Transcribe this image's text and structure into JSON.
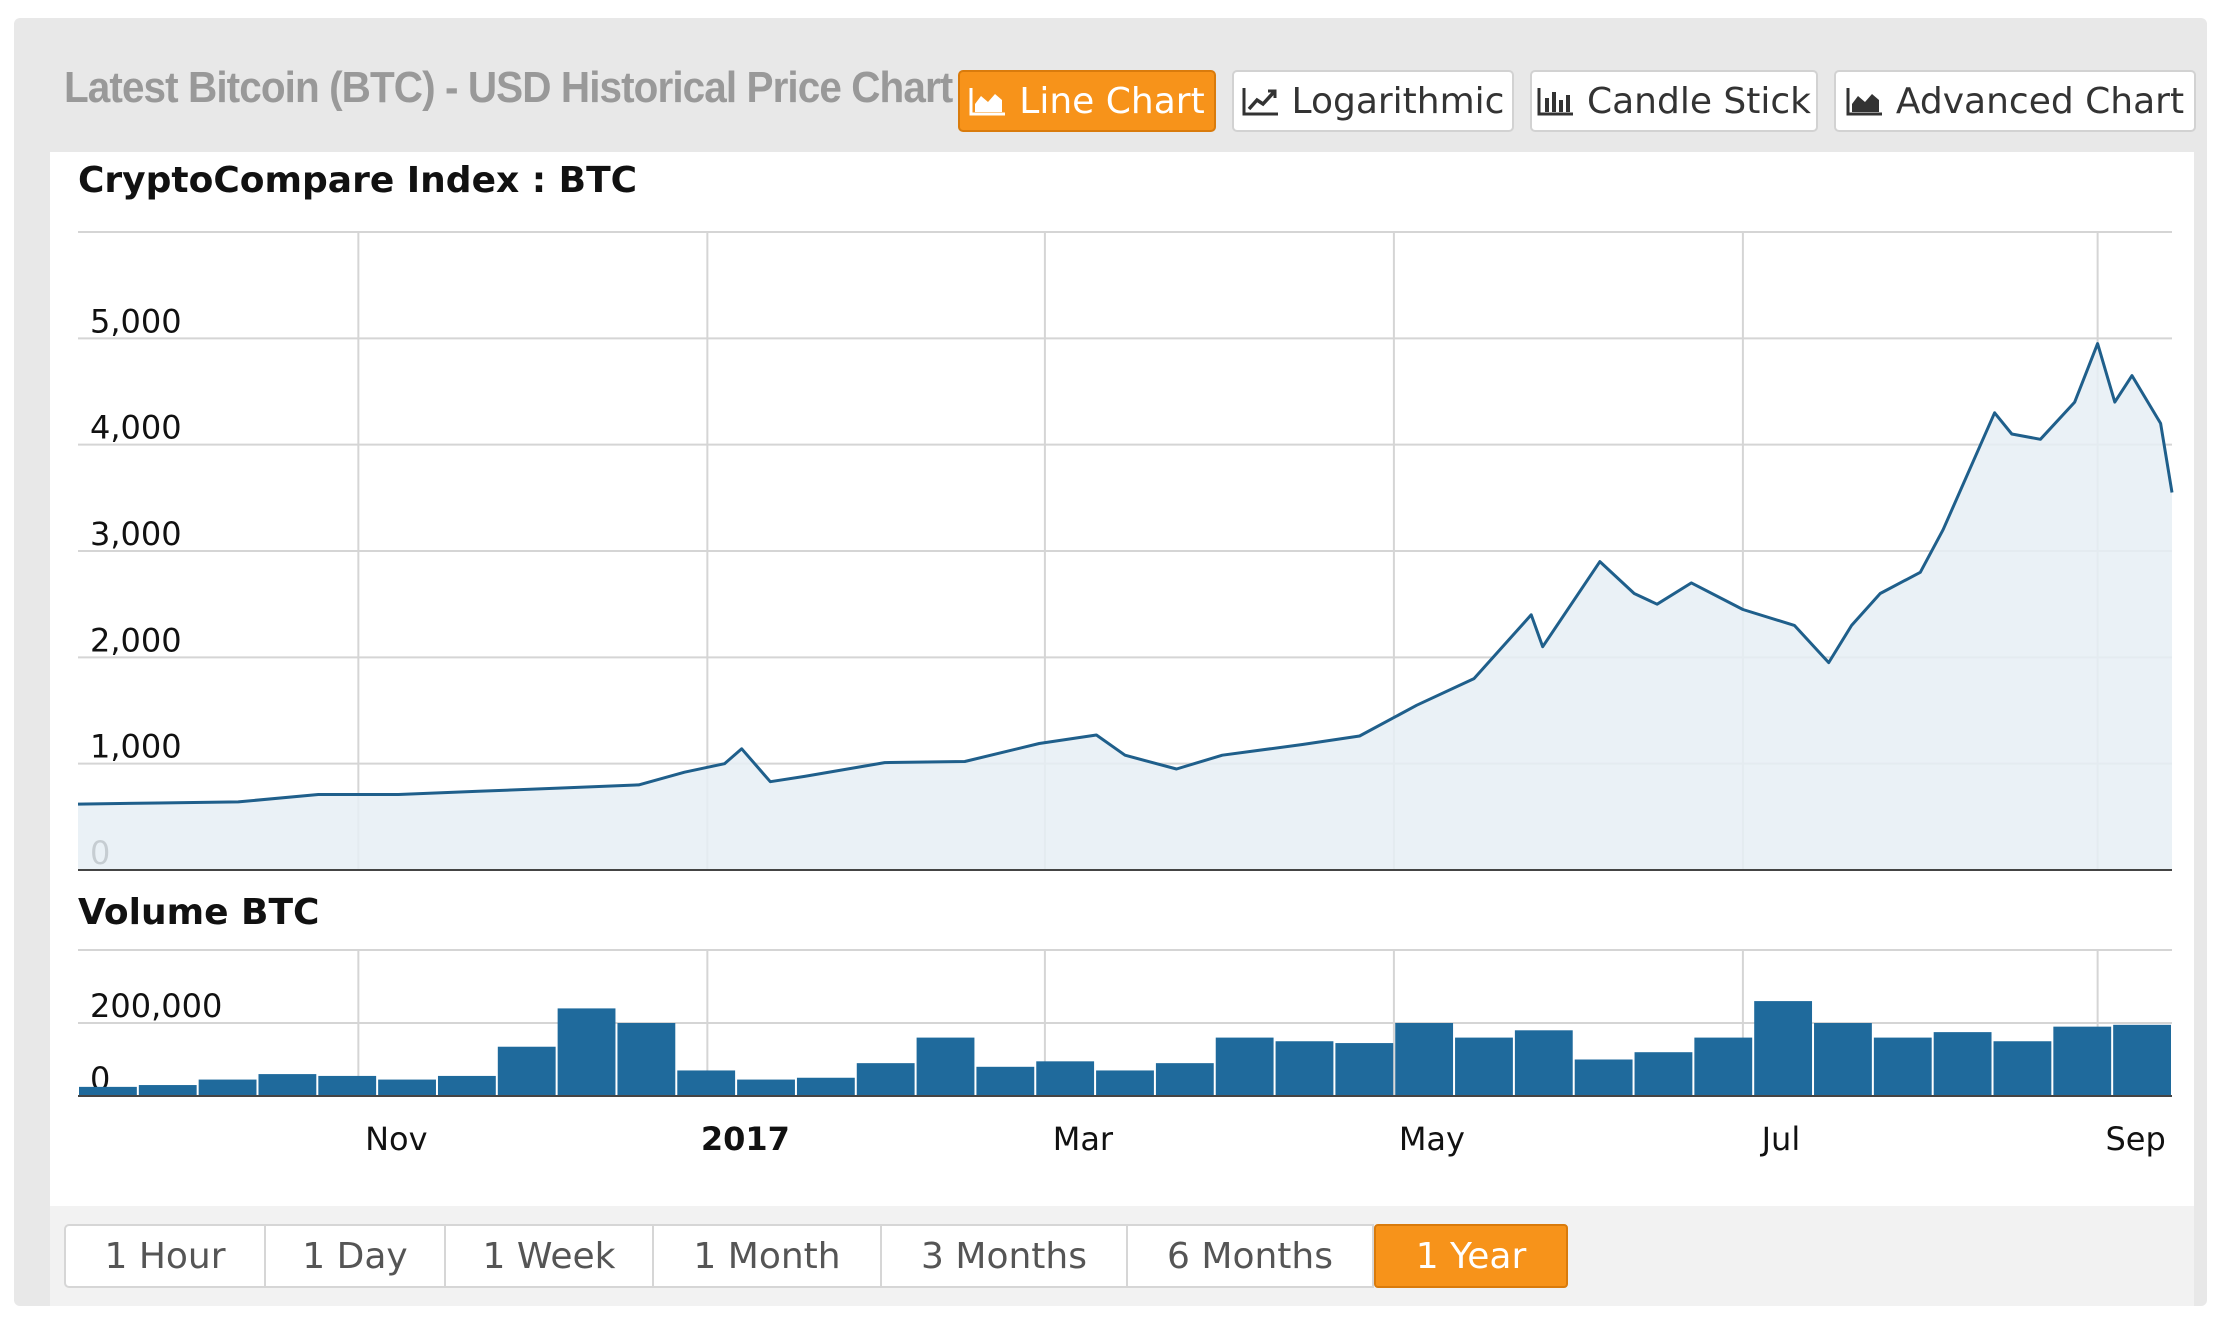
{
  "header": {
    "title": "Latest Bitcoin (BTC) - USD Historical Price Chart"
  },
  "chart_types": [
    {
      "label": "Line Chart",
      "icon": "area-chart-icon",
      "active": true
    },
    {
      "label": "Logarithmic",
      "icon": "line-chart-icon",
      "active": false
    },
    {
      "label": "Candle Stick",
      "icon": "bar-chart-icon",
      "active": false
    },
    {
      "label": "Advanced Chart",
      "icon": "area-chart-icon",
      "active": false
    }
  ],
  "ranges": [
    {
      "label": "1 Hour",
      "active": false
    },
    {
      "label": "1 Day",
      "active": false
    },
    {
      "label": "1 Week",
      "active": false
    },
    {
      "label": "1 Month",
      "active": false
    },
    {
      "label": "3 Months",
      "active": false
    },
    {
      "label": "6 Months",
      "active": false
    },
    {
      "label": "1 Year",
      "active": true
    }
  ],
  "colors": {
    "accent": "#f7931a",
    "line": "#1f5f8b",
    "area_fill": "#e6eef5",
    "volume_bar": "#1f6a9c",
    "grid": "#d5d5d5"
  },
  "chart_data": [
    {
      "type": "area",
      "title": "CryptoCompare Index : BTC",
      "ylim": [
        0,
        6000
      ],
      "yticks": [
        0,
        1000,
        2000,
        3000,
        4000,
        5000
      ],
      "ytick_labels": [
        "0",
        "1,000",
        "2,000",
        "3,000",
        "4,000",
        "5,000"
      ],
      "grid": true,
      "x": [
        "2016-09-13",
        "2016-09-27",
        "2016-10-11",
        "2016-10-25",
        "2016-11-08",
        "2016-11-22",
        "2016-12-06",
        "2016-12-20",
        "2016-12-28",
        "2017-01-04",
        "2017-01-07",
        "2017-01-12",
        "2017-01-18",
        "2017-02-01",
        "2017-02-15",
        "2017-02-28",
        "2017-03-10",
        "2017-03-15",
        "2017-03-24",
        "2017-04-01",
        "2017-04-15",
        "2017-04-25",
        "2017-05-05",
        "2017-05-15",
        "2017-05-25",
        "2017-05-27",
        "2017-06-06",
        "2017-06-12",
        "2017-06-16",
        "2017-06-22",
        "2017-07-01",
        "2017-07-10",
        "2017-07-16",
        "2017-07-20",
        "2017-07-25",
        "2017-08-01",
        "2017-08-05",
        "2017-08-14",
        "2017-08-17",
        "2017-08-22",
        "2017-08-28",
        "2017-09-01",
        "2017-09-04",
        "2017-09-07",
        "2017-09-12",
        "2017-09-14"
      ],
      "y": [
        620,
        630,
        640,
        710,
        710,
        740,
        770,
        800,
        920,
        1000,
        1140,
        830,
        880,
        1010,
        1020,
        1190,
        1270,
        1080,
        950,
        1080,
        1180,
        1260,
        1550,
        1800,
        2400,
        2100,
        2900,
        2600,
        2500,
        2700,
        2450,
        2300,
        1950,
        2300,
        2600,
        2800,
        3200,
        4300,
        4100,
        4050,
        4400,
        4950,
        4400,
        4650,
        4200,
        3550
      ]
    },
    {
      "type": "bar",
      "title": "Volume BTC",
      "ylim": [
        0,
        400000
      ],
      "yticks": [
        0,
        200000
      ],
      "ytick_labels": [
        "0",
        "200,000"
      ],
      "grid": true,
      "x": [
        "2016-09-13",
        "2016-10-01",
        "2016-10-15",
        "2016-11-01",
        "2016-11-15",
        "2016-12-01",
        "2016-12-20",
        "2017-01-01",
        "2017-01-05",
        "2017-01-10",
        "2017-01-20",
        "2017-02-01",
        "2017-02-15",
        "2017-03-01",
        "2017-03-15",
        "2017-03-20",
        "2017-04-01",
        "2017-04-15",
        "2017-05-01",
        "2017-05-15",
        "2017-05-25",
        "2017-06-01",
        "2017-06-10",
        "2017-06-15",
        "2017-06-25",
        "2017-07-01",
        "2017-07-10",
        "2017-07-16",
        "2017-07-20",
        "2017-08-01",
        "2017-08-10",
        "2017-08-20",
        "2017-08-30",
        "2017-09-05",
        "2017-09-14"
      ],
      "y": [
        25000,
        30000,
        45000,
        60000,
        55000,
        45000,
        55000,
        135000,
        240000,
        200000,
        70000,
        45000,
        50000,
        90000,
        160000,
        80000,
        95000,
        70000,
        90000,
        160000,
        150000,
        145000,
        200000,
        160000,
        180000,
        100000,
        120000,
        160000,
        260000,
        200000,
        160000,
        175000,
        150000,
        190000,
        195000
      ]
    }
  ],
  "x_axis": {
    "ticks": [
      {
        "label": "Nov",
        "date": "2016-11-01",
        "bold": false
      },
      {
        "label": "2017",
        "date": "2017-01-01",
        "bold": true
      },
      {
        "label": "Mar",
        "date": "2017-03-01",
        "bold": false
      },
      {
        "label": "May",
        "date": "2017-05-01",
        "bold": false
      },
      {
        "label": "Jul",
        "date": "2017-07-01",
        "bold": false
      },
      {
        "label": "Sep",
        "date": "2017-09-01",
        "bold": false
      }
    ]
  }
}
